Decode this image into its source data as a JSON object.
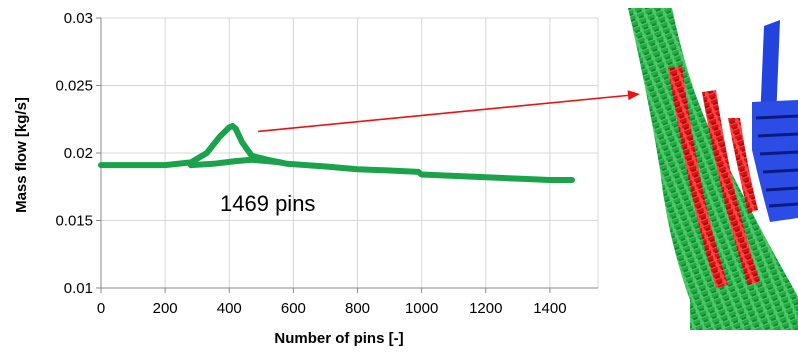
{
  "chart_data": {
    "type": "line",
    "title": "",
    "xlabel": "Number of pins [-]",
    "ylabel": "Mass flow [kg/s]",
    "xlim": [
      0,
      1550
    ],
    "ylim": [
      0.01,
      0.03
    ],
    "x_ticks": [
      0,
      200,
      400,
      600,
      800,
      1000,
      1200,
      1400
    ],
    "x_tick_labels": [
      "0",
      "200",
      "400",
      "600",
      "800",
      "1000",
      "1200",
      "1400"
    ],
    "y_ticks": [
      0.01,
      0.015,
      0.02,
      0.025,
      0.03
    ],
    "y_tick_labels": [
      "0.01",
      "0.015",
      "0.02",
      "0.025",
      "0.03"
    ],
    "grid": true,
    "series": [
      {
        "color": "#1aa34a",
        "x": [
          0,
          100,
          200,
          280,
          330,
          370,
          400,
          410,
          420,
          440,
          470,
          520,
          580,
          700,
          800,
          900,
          990,
          1000,
          1010,
          1100,
          1200,
          1300,
          1400,
          1469
        ],
        "y": [
          0.0191,
          0.0191,
          0.0191,
          0.0193,
          0.02,
          0.0212,
          0.0219,
          0.022,
          0.0218,
          0.0208,
          0.0198,
          0.0195,
          0.0192,
          0.019,
          0.0188,
          0.0187,
          0.0186,
          0.0184,
          0.0184,
          0.0183,
          0.0182,
          0.0181,
          0.018,
          0.018
        ]
      },
      {
        "color": "#1aa34a",
        "x": [
          280,
          350,
          420,
          470,
          520,
          560
        ],
        "y": [
          0.0191,
          0.0192,
          0.0194,
          0.0195,
          0.0194,
          0.0193
        ]
      }
    ],
    "annotations": [
      {
        "text": "1469 pins",
        "x": 520,
        "y": 0.0157
      }
    ],
    "arrow": {
      "color": "#ee1111",
      "from": [
        490,
        0.0216
      ]
    }
  },
  "colors": {
    "pin_green": "#22aa44",
    "pin_red": "#dd1111",
    "part_blue": "#2244dd",
    "axis": "#888888",
    "grid": "#d8d8d8"
  },
  "render": {
    "icon": "turbine-pin-array-render"
  }
}
